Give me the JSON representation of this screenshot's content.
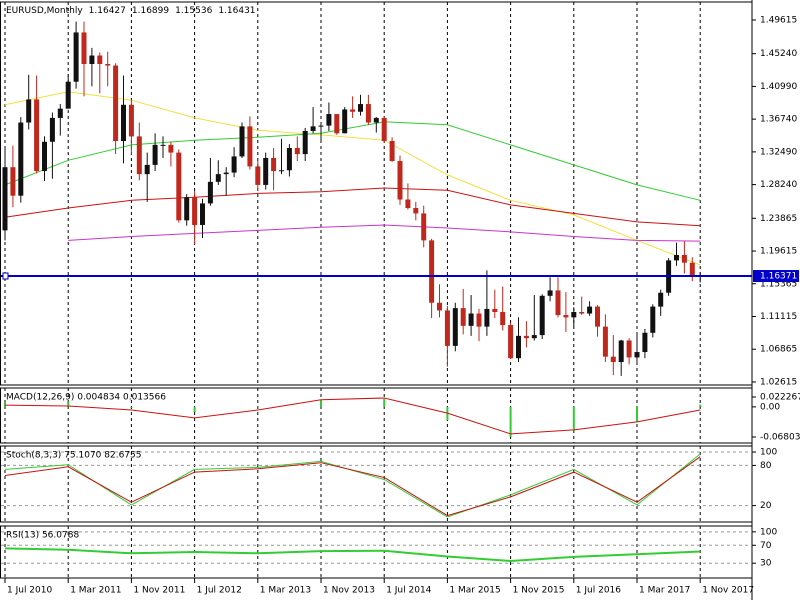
{
  "chart_data": [
    {
      "type": "candlestick",
      "symbol": "EURUSD,Monthly",
      "categories": [
        "1 Jul 2010",
        null,
        null,
        null,
        null,
        null,
        null,
        null,
        "1 Mar 2011",
        null,
        null,
        null,
        null,
        null,
        null,
        null,
        "1 Nov 2011",
        null,
        null,
        null,
        null,
        null,
        null,
        null,
        "1 Jul 2012",
        null,
        null,
        null,
        null,
        null,
        null,
        null,
        "1 Mar 2013",
        null,
        null,
        null,
        null,
        null,
        null,
        null,
        "1 Nov 2013",
        null,
        null,
        null,
        null,
        null,
        null,
        null,
        "1 Jul 2014",
        null,
        null,
        null,
        null,
        null,
        null,
        null,
        "1 Mar 2015",
        null,
        null,
        null,
        null,
        null,
        null,
        null,
        "1 Nov 2015",
        null,
        null,
        null,
        null,
        null,
        null,
        null,
        "1 Jul 2016",
        null,
        null,
        null,
        null,
        null,
        null,
        null,
        "1 Mar 2017",
        null,
        null,
        null,
        null,
        null,
        null,
        null,
        "1 Nov 2017"
      ],
      "open": [
        1.223,
        1.305,
        1.268,
        1.363,
        1.393,
        1.3,
        1.338,
        1.369,
        1.381,
        1.416,
        1.48,
        1.439,
        1.45,
        1.439,
        1.437,
        1.339,
        1.386,
        1.345,
        1.296,
        1.308,
        1.334,
        1.334,
        1.324,
        1.236,
        1.266,
        1.23,
        1.258,
        1.286,
        1.296,
        1.298,
        1.319,
        1.358,
        1.306,
        1.282,
        1.317,
        1.3,
        1.301,
        1.33,
        1.322,
        1.352,
        1.358,
        1.359,
        1.374,
        1.349,
        1.38,
        1.377,
        1.387,
        1.363,
        1.369,
        1.339,
        1.313,
        1.263,
        1.252,
        1.245,
        1.21,
        1.129,
        1.119,
        1.073,
        1.122,
        1.099,
        1.115,
        1.098,
        1.121,
        1.117,
        1.1,
        1.057,
        1.086,
        1.083,
        1.087,
        1.138,
        1.145,
        1.113,
        1.11,
        1.117,
        1.115,
        1.124,
        1.098,
        1.059,
        1.052,
        1.08,
        1.058,
        1.065,
        1.09,
        1.124,
        1.142,
        1.184,
        1.191,
        1.181,
        1.16427
      ],
      "high": [
        1.33,
        1.333,
        1.37,
        1.425,
        1.424,
        1.345,
        1.376,
        1.387,
        1.424,
        1.494,
        1.494,
        1.46,
        1.454,
        1.455,
        1.44,
        1.424,
        1.393,
        1.363,
        1.324,
        1.349,
        1.345,
        1.338,
        1.328,
        1.27,
        1.274,
        1.264,
        1.317,
        1.314,
        1.305,
        1.331,
        1.363,
        1.371,
        1.313,
        1.324,
        1.33,
        1.342,
        1.335,
        1.345,
        1.356,
        1.383,
        1.362,
        1.389,
        1.374,
        1.383,
        1.397,
        1.399,
        1.399,
        1.37,
        1.37,
        1.344,
        1.32,
        1.284,
        1.26,
        1.255,
        1.212,
        1.153,
        1.125,
        1.129,
        1.147,
        1.139,
        1.121,
        1.171,
        1.146,
        1.15,
        1.103,
        1.11,
        1.105,
        1.139,
        1.14,
        1.162,
        1.162,
        1.143,
        1.123,
        1.137,
        1.131,
        1.126,
        1.114,
        1.087,
        1.081,
        1.083,
        1.09,
        1.095,
        1.127,
        1.146,
        1.187,
        1.207,
        1.209,
        1.188,
        1.16899
      ],
      "low": [
        1.21,
        1.253,
        1.259,
        1.354,
        1.297,
        1.287,
        1.29,
        1.346,
        1.381,
        1.407,
        1.397,
        1.41,
        1.401,
        1.41,
        1.322,
        1.31,
        1.321,
        1.288,
        1.26,
        1.3,
        1.317,
        1.306,
        1.233,
        1.229,
        1.205,
        1.213,
        1.255,
        1.282,
        1.268,
        1.292,
        1.317,
        1.302,
        1.274,
        1.276,
        1.275,
        1.296,
        1.293,
        1.313,
        1.313,
        1.349,
        1.339,
        1.352,
        1.347,
        1.349,
        1.369,
        1.372,
        1.36,
        1.35,
        1.338,
        1.312,
        1.256,
        1.25,
        1.236,
        1.201,
        1.109,
        1.11,
        1.046,
        1.066,
        1.088,
        1.086,
        1.079,
        1.086,
        1.109,
        1.093,
        1.056,
        1.052,
        1.071,
        1.08,
        1.082,
        1.131,
        1.11,
        1.091,
        1.098,
        1.113,
        1.112,
        1.085,
        1.052,
        1.035,
        1.034,
        1.049,
        1.05,
        1.057,
        1.084,
        1.112,
        1.138,
        1.177,
        1.167,
        1.157,
        1.15536
      ],
      "close": [
        1.305,
        1.268,
        1.363,
        1.393,
        1.3,
        1.338,
        1.369,
        1.381,
        1.416,
        1.48,
        1.439,
        1.45,
        1.439,
        1.437,
        1.339,
        1.386,
        1.345,
        1.296,
        1.308,
        1.334,
        1.334,
        1.324,
        1.236,
        1.266,
        1.23,
        1.258,
        1.286,
        1.296,
        1.298,
        1.319,
        1.358,
        1.306,
        1.282,
        1.317,
        1.3,
        1.301,
        1.33,
        1.322,
        1.352,
        1.358,
        1.359,
        1.374,
        1.349,
        1.38,
        1.377,
        1.387,
        1.363,
        1.369,
        1.339,
        1.313,
        1.263,
        1.252,
        1.245,
        1.21,
        1.129,
        1.119,
        1.073,
        1.122,
        1.099,
        1.115,
        1.098,
        1.121,
        1.117,
        1.1,
        1.057,
        1.086,
        1.083,
        1.087,
        1.138,
        1.145,
        1.113,
        1.11,
        1.117,
        1.115,
        1.124,
        1.098,
        1.059,
        1.052,
        1.08,
        1.058,
        1.065,
        1.09,
        1.124,
        1.142,
        1.184,
        1.191,
        1.181,
        1.164,
        1.16431
      ],
      "colors": {
        "up": "#111111",
        "down": "#c0281e"
      },
      "series": [
        {
          "color": "#f2e040",
          "x": [
            "1 Jul 2010",
            "1 Mar 2011",
            "1 Nov 2011",
            "1 Jul 2012",
            "1 Mar 2013",
            "1 Nov 2013",
            "1 Jul 2014",
            "1 Mar 2015",
            "1 Nov 2015",
            "1 Jul 2016",
            "1 Mar 2017",
            "1 Nov 2017"
          ],
          "values": [
            1.386,
            1.403,
            1.392,
            1.369,
            1.353,
            1.347,
            1.34,
            1.295,
            1.262,
            1.243,
            1.21,
            1.178
          ]
        },
        {
          "color": "#33cc33",
          "x": [
            "1 Jul 2010",
            "1 Mar 2011",
            "1 Nov 2011",
            "1 Jul 2012",
            "1 Mar 2013",
            "1 Nov 2013",
            "1 Jul 2014",
            "1 Mar 2015",
            "1 Nov 2015",
            "1 Jul 2016",
            "1 Mar 2017",
            "1 Nov 2017"
          ],
          "values": [
            1.282,
            1.314,
            1.334,
            1.34,
            1.344,
            1.349,
            1.364,
            1.36,
            1.334,
            1.308,
            1.282,
            1.262
          ]
        },
        {
          "color": "#cc1111",
          "x": [
            "1 Jul 2010",
            "1 Mar 2011",
            "1 Nov 2011",
            "1 Jul 2012",
            "1 Mar 2013",
            "1 Nov 2013",
            "1 Jul 2014",
            "1 Mar 2015",
            "1 Nov 2015",
            "1 Jul 2016",
            "1 Mar 2017",
            "1 Nov 2017"
          ],
          "values": [
            1.24,
            1.252,
            1.262,
            1.266,
            1.271,
            1.273,
            1.278,
            1.275,
            1.256,
            1.245,
            1.234,
            1.229
          ]
        },
        {
          "color": "#cc33cc",
          "x": [
            "1 Jul 2010",
            "1 Mar 2011",
            "1 Nov 2011",
            "1 Jul 2012",
            "1 Mar 2013",
            "1 Nov 2013",
            "1 Jul 2014",
            "1 Mar 2015",
            "1 Nov 2015",
            "1 Jul 2016",
            "1 Mar 2017",
            "1 Nov 2017"
          ],
          "values": [
            null,
            1.21,
            1.215,
            1.219,
            1.223,
            1.227,
            1.23,
            1.226,
            1.221,
            1.215,
            1.21,
            1.209
          ]
        }
      ],
      "hline": 1.16371,
      "hline_color": "#0000cc",
      "ylim": [
        1.0222,
        1.5195
      ],
      "yticks": [
        1.02615,
        1.06865,
        1.11115,
        1.15365,
        1.19615,
        1.23865,
        {
          "value": 1.2824,
          "label": "1.28240"
        },
        {
          "value": 1.3249,
          "label": "1.32490"
        },
        {
          "value": 1.3674,
          "label": "1.36740"
        },
        {
          "value": 1.4099,
          "label": "1.40990"
        },
        {
          "value": 1.4524,
          "label": "1.45240"
        },
        1.49615
      ],
      "grid": false
    },
    {
      "type": "combo",
      "title": "MACD(12,26,9) 0.004834 0.013566",
      "x": [
        "1 Jul 2010",
        "1 Mar 2011",
        "1 Nov 2011",
        "1 Jul 2012",
        "1 Mar 2013",
        "1 Nov 2013",
        "1 Jul 2014",
        "1 Mar 2015",
        "1 Nov 2015",
        "1 Jul 2016",
        "1 Mar 2017",
        "1 Nov 2017"
      ],
      "series": [
        {
          "type": "bar",
          "color": "#33cc33",
          "values": [
            0.01,
            0.012,
            0.0,
            -0.012,
            0.002,
            0.016,
            0.018,
            -0.03,
            -0.068,
            -0.055,
            -0.035,
            0.005
          ]
        },
        {
          "type": "line",
          "color": "#cc1111",
          "values": [
            0.004,
            0.002,
            -0.007,
            -0.025,
            -0.007,
            0.016,
            0.02,
            -0.014,
            -0.061,
            -0.052,
            -0.034,
            -0.007
          ]
        }
      ],
      "ylim": [
        -0.0816,
        0.0426
      ],
      "yticks": [
        0.022267,
        {
          "value": 0,
          "label": "0.00"
        },
        -0.068036
      ],
      "grid": false
    },
    {
      "type": "line",
      "title": "Stoch(8,3,3) 75.1070 82.6755",
      "x": [
        "1 Jul 2010",
        "1 Mar 2011",
        "1 Nov 2011",
        "1 Jul 2012",
        "1 Mar 2013",
        "1 Nov 2013",
        "1 Jul 2014",
        "1 Mar 2015",
        "1 Nov 2015",
        "1 Jul 2016",
        "1 Mar 2017",
        "1 Nov 2017"
      ],
      "series": [
        {
          "color": "#33cc33",
          "values": [
            74,
            81,
            21,
            74,
            77,
            86,
            59,
            3,
            36,
            74,
            21,
            97
          ]
        },
        {
          "color": "#cc1111",
          "values": [
            65,
            78,
            25,
            70,
            75,
            84,
            62,
            5,
            33,
            70,
            25,
            93
          ]
        }
      ],
      "ylim": [
        -4.5,
        109
      ],
      "yticks": [
        100,
        80,
        20
      ],
      "grid": true
    },
    {
      "type": "line",
      "title": "RSI(13) 56.0788",
      "x": [
        "1 Jul 2010",
        "1 Mar 2011",
        "1 Nov 2011",
        "1 Jul 2012",
        "1 Mar 2013",
        "1 Nov 2013",
        "1 Jul 2014",
        "1 Mar 2015",
        "1 Nov 2015",
        "1 Jul 2016",
        "1 Mar 2017",
        "1 Nov 2017"
      ],
      "series": [
        {
          "color": "#33cc33",
          "values": [
            63,
            60,
            52,
            55,
            52,
            57,
            58,
            45,
            35,
            44,
            50,
            56.0788
          ]
        }
      ],
      "ylim": [
        -3,
        113
      ],
      "yticks": [
        100,
        70,
        30
      ],
      "grid": true
    }
  ]
}
